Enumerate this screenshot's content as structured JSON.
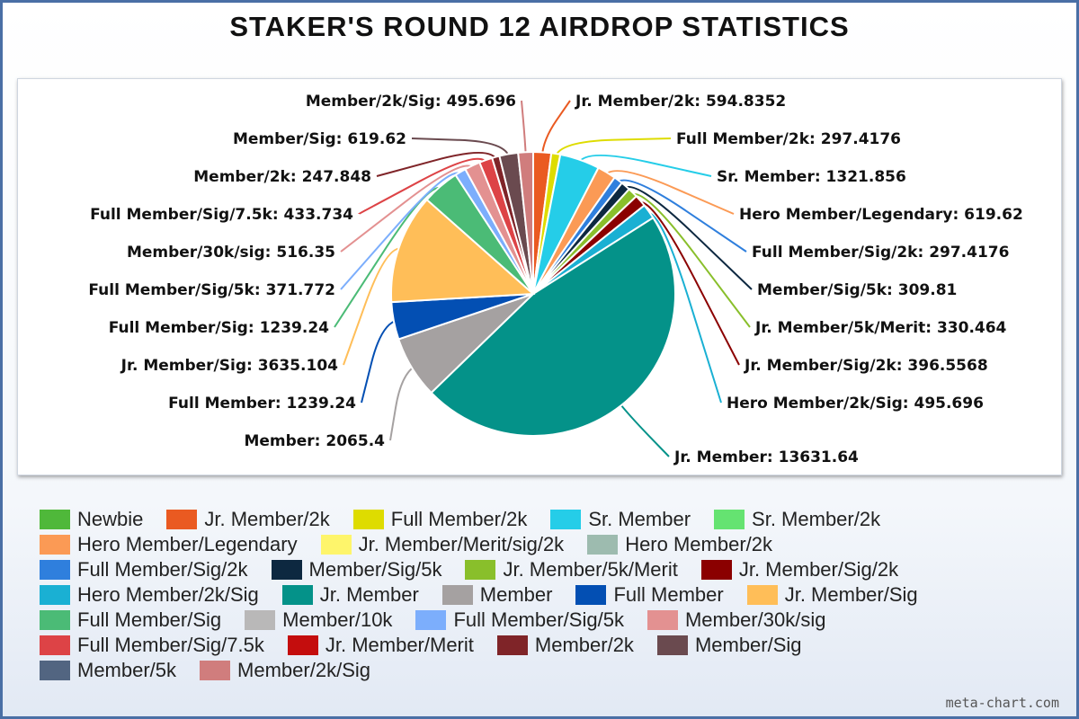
{
  "chart_data": {
    "type": "pie",
    "title": "STAKER'S ROUND 12 AIRDROP STATISTICS",
    "slices": [
      {
        "name": "Newbie",
        "value": 0,
        "color": "#4fb83a"
      },
      {
        "name": "Jr. Member/2k",
        "value": 594.8352,
        "color": "#ea5a21"
      },
      {
        "name": "Full Member/2k",
        "value": 297.4176,
        "color": "#dedc00"
      },
      {
        "name": "Sr. Member",
        "value": 1321.856,
        "color": "#25cde8"
      },
      {
        "name": "Sr. Member/2k",
        "value": 0,
        "color": "#65e371"
      },
      {
        "name": "Hero Member/Legendary",
        "value": 619.62,
        "color": "#fb9a55"
      },
      {
        "name": "Jr. Member/Merit/sig/2k",
        "value": 0,
        "color": "#fef56b"
      },
      {
        "name": "Hero Member/2k",
        "value": 0,
        "color": "#9dbbaf"
      },
      {
        "name": "Full Member/Sig/2k",
        "value": 297.4176,
        "color": "#2f7fdd"
      },
      {
        "name": "Member/Sig/5k",
        "value": 309.81,
        "color": "#0d2840"
      },
      {
        "name": "Jr. Member/5k/Merit",
        "value": 330.464,
        "color": "#89bf2b"
      },
      {
        "name": "Jr. Member/Sig/2k",
        "value": 396.5568,
        "color": "#8b0000"
      },
      {
        "name": "Hero Member/2k/Sig",
        "value": 495.696,
        "color": "#1ab0d3"
      },
      {
        "name": "Jr. Member",
        "value": 13631.64,
        "color": "#049289"
      },
      {
        "name": "Member",
        "value": 2065.4,
        "color": "#a5a1a1"
      },
      {
        "name": "Full Member",
        "value": 1239.24,
        "color": "#034fb3"
      },
      {
        "name": "Jr. Member/Sig",
        "value": 3635.104,
        "color": "#ffbe58"
      },
      {
        "name": "Full Member/Sig",
        "value": 1239.24,
        "color": "#4bbb76"
      },
      {
        "name": "Member/10k",
        "value": 0,
        "color": "#b9b8b8"
      },
      {
        "name": "Full Member/Sig/5k",
        "value": 371.772,
        "color": "#7caefc"
      },
      {
        "name": "Member/30k/sig",
        "value": 516.35,
        "color": "#e39191"
      },
      {
        "name": "Full Member/Sig/7.5k",
        "value": 433.734,
        "color": "#dd4346"
      },
      {
        "name": "Jr. Member/Merit",
        "value": 0,
        "color": "#c40d0d"
      },
      {
        "name": "Member/2k",
        "value": 247.848,
        "color": "#7f2428"
      },
      {
        "name": "Member/Sig",
        "value": 619.62,
        "color": "#6a4a4f"
      },
      {
        "name": "Member/5k",
        "value": 0,
        "color": "#526581"
      },
      {
        "name": "Member/2k/Sig",
        "value": 495.696,
        "color": "#d07d7d"
      }
    ],
    "data_labels": [
      "Member/2k/Sig: 495.696",
      "Member/Sig: 619.62",
      "Member/2k: 247.848",
      "Full Member/Sig/7.5k: 433.734",
      "Member/30k/sig: 516.35",
      "Full Member/Sig/5k: 371.772",
      "Full Member/Sig: 1239.24",
      "Jr. Member/Sig: 3635.104",
      "Full Member: 1239.24",
      "Member: 2065.4",
      "Jr. Member/2k: 594.8352",
      "Full Member/2k: 297.4176",
      "Sr. Member: 1321.856",
      "Hero Member/Legendary: 619.62",
      "Full Member/Sig/2k: 297.4176",
      "Member/Sig/5k: 309.81",
      "Jr. Member/5k/Merit: 330.464",
      "Jr. Member/Sig/2k: 396.5568",
      "Hero Member/2k/Sig: 495.696",
      "Jr. Member: 13631.64"
    ],
    "legend_position": "bottom",
    "grid": false
  },
  "footer": "meta-chart.com"
}
